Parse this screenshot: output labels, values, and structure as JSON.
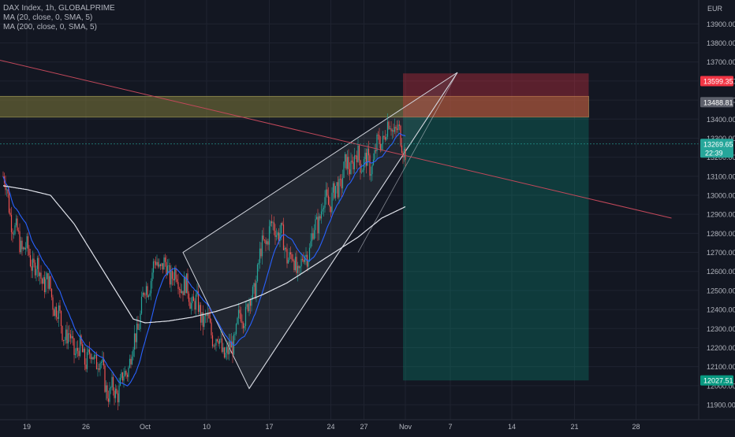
{
  "legend": {
    "symbol_line": "DAX Index, 1h, GLOBALPRIME",
    "ma20": "MA (20, close, 0, SMA, 5)",
    "ma200": "MA (200, close, 0, SMA, 5)"
  },
  "colors": {
    "background": "#131722",
    "grid": "#1f2330",
    "up": "#26a69a",
    "down": "#ef5350",
    "ma20": "#2962ff",
    "ma200": "#e0e3eb",
    "wedge": "#d1d4dc",
    "zone": "#7f7a3a",
    "stop": "#f23645",
    "target": "#089981",
    "trend": "#c2485a"
  },
  "chart_data": {
    "type": "candlestick",
    "title": "DAX Index, 1h, GLOBALPRIME",
    "currency": "EUR",
    "ylim": [
      11850,
      13980
    ],
    "y_ticks": [
      11900,
      12000,
      12100,
      12200,
      12300,
      12400,
      12500,
      12600,
      12700,
      12800,
      12900,
      13000,
      13100,
      13200,
      13300,
      13400,
      13500,
      13600,
      13700,
      13800,
      13900
    ],
    "y_tick_labels": [
      "11900.00",
      "12000.00",
      "12100.00",
      "12200.00",
      "12300.00",
      "12400.00",
      "12500.00",
      "12600.00",
      "12700.00",
      "12800.00",
      "12900.00",
      "13000.00",
      "13100.00",
      "13200.00",
      "13300.00",
      "13400.00",
      "13500.00",
      "13600.00",
      "13700.00",
      "13800.00",
      "13900.00"
    ],
    "x_ticks": [
      "19",
      "26",
      "Oct",
      "10",
      "17",
      "24",
      "27",
      "Nov",
      "7",
      "14",
      "21",
      "28"
    ],
    "price_labels": [
      {
        "id": "stop",
        "value": "13599.35"
      },
      {
        "id": "zone",
        "value": "13488.81"
      },
      {
        "id": "last",
        "value": "13269.65",
        "sub": "22:39"
      },
      {
        "id": "target",
        "value": "12027.51"
      }
    ],
    "close_anchors": [
      [
        0,
        13100
      ],
      [
        10,
        12800
      ],
      [
        20,
        12700
      ],
      [
        30,
        12600
      ],
      [
        40,
        12500
      ],
      [
        50,
        12300
      ],
      [
        60,
        12200
      ],
      [
        70,
        12150
      ],
      [
        80,
        12150
      ],
      [
        90,
        11950
      ],
      [
        100,
        12000
      ],
      [
        110,
        12200
      ],
      [
        120,
        12500
      ],
      [
        130,
        12650
      ],
      [
        140,
        12600
      ],
      [
        150,
        12550
      ],
      [
        160,
        12450
      ],
      [
        170,
        12350
      ],
      [
        180,
        12250
      ],
      [
        190,
        12150
      ],
      [
        200,
        12350
      ],
      [
        210,
        12450
      ],
      [
        220,
        12750
      ],
      [
        230,
        12850
      ],
      [
        240,
        12700
      ],
      [
        250,
        12600
      ],
      [
        260,
        12750
      ],
      [
        270,
        12950
      ],
      [
        280,
        13000
      ],
      [
        290,
        13150
      ],
      [
        300,
        13200
      ],
      [
        310,
        13150
      ],
      [
        320,
        13300
      ],
      [
        328,
        13380
      ],
      [
        340,
        13250
      ]
    ],
    "ma200_anchors": [
      [
        0,
        13050
      ],
      [
        20,
        13030
      ],
      [
        40,
        13000
      ],
      [
        60,
        12850
      ],
      [
        80,
        12650
      ],
      [
        100,
        12450
      ],
      [
        110,
        12350
      ],
      [
        120,
        12330
      ],
      [
        140,
        12340
      ],
      [
        160,
        12360
      ],
      [
        180,
        12390
      ],
      [
        200,
        12430
      ],
      [
        220,
        12480
      ],
      [
        240,
        12540
      ],
      [
        260,
        12620
      ],
      [
        280,
        12700
      ],
      [
        300,
        12780
      ],
      [
        320,
        12880
      ],
      [
        340,
        12940
      ]
    ],
    "wedge_points": [
      {
        "x": 152,
        "y": 12700
      },
      {
        "x": 208,
        "y": 11985
      },
      {
        "x": 384,
        "y": 13645
      }
    ],
    "wedge_upper_end": {
      "x": 384,
      "y": 13645
    },
    "zone": {
      "x_start": -10,
      "x_end": 495,
      "top": 13520,
      "bottom": 13410
    },
    "position": {
      "x_start": 338,
      "x_end": 495,
      "stop": 13640,
      "entry": 13410,
      "target": 12027.51
    },
    "trendline": [
      {
        "x": -10,
        "y": 13720
      },
      {
        "x": 565,
        "y": 12880
      }
    ],
    "x_tick_bars": [
      20,
      70,
      120,
      172,
      225,
      277,
      305,
      340,
      378,
      430,
      483,
      535
    ]
  }
}
